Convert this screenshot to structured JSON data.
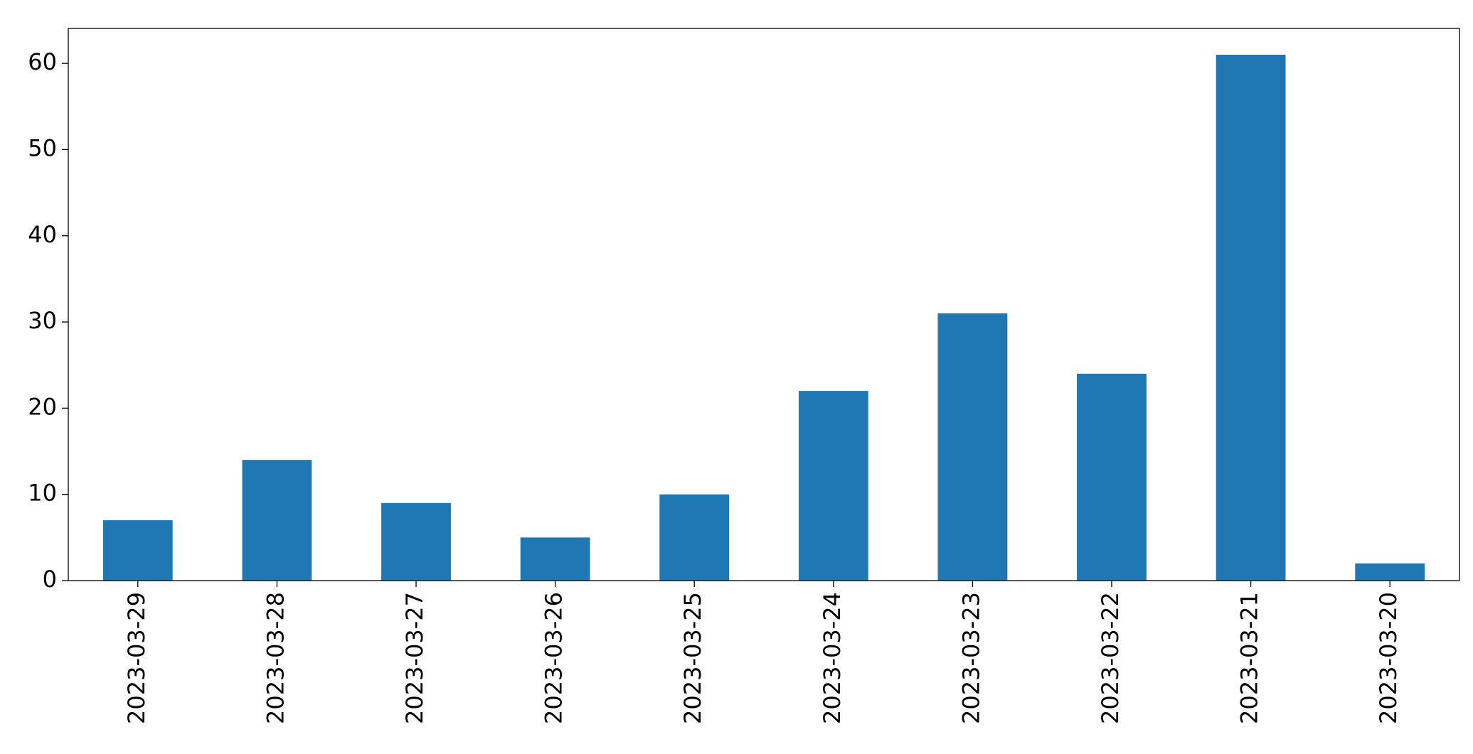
{
  "chart_data": {
    "type": "bar",
    "categories": [
      "2023-03-29",
      "2023-03-28",
      "2023-03-27",
      "2023-03-26",
      "2023-03-25",
      "2023-03-24",
      "2023-03-23",
      "2023-03-22",
      "2023-03-21",
      "2023-03-20"
    ],
    "values": [
      7,
      14,
      9,
      5,
      10,
      22,
      31,
      24,
      61,
      2
    ],
    "color": "#1f77b4",
    "ylim": [
      0,
      64.05
    ],
    "yticks": [
      0,
      10,
      20,
      30,
      40,
      50,
      60
    ],
    "grid": false
  }
}
